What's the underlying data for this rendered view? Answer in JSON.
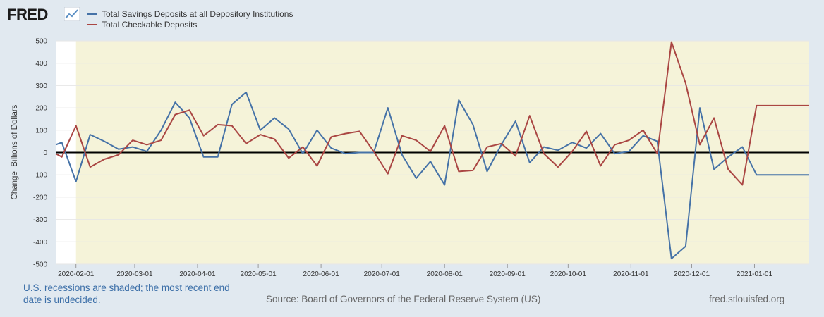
{
  "header": {
    "logo_text": "FRED",
    "logo_icon": "trend-line-icon"
  },
  "colors": {
    "background": "#e1e9f0",
    "plot_background": "#ffffff",
    "recession_shade": "#f5f3d9",
    "series_blue": "#4572a7",
    "series_red": "#aa4643",
    "zero_line": "#000000",
    "grid": "#e6e6e6"
  },
  "chart_data": {
    "type": "line",
    "ylabel": "Change, Billions of Dollars",
    "ylim": [
      -500,
      500
    ],
    "yticks": [
      -500,
      -400,
      -300,
      -200,
      -100,
      0,
      100,
      200,
      300,
      400,
      500
    ],
    "x_range": [
      0,
      372
    ],
    "xticks": [
      {
        "label": "2020-02-01",
        "day": 10
      },
      {
        "label": "2020-03-01",
        "day": 39
      },
      {
        "label": "2020-04-01",
        "day": 70
      },
      {
        "label": "2020-05-01",
        "day": 100
      },
      {
        "label": "2020-06-01",
        "day": 131
      },
      {
        "label": "2020-07-01",
        "day": 161
      },
      {
        "label": "2020-08-01",
        "day": 192
      },
      {
        "label": "2020-09-01",
        "day": 223
      },
      {
        "label": "2020-10-01",
        "day": 253
      },
      {
        "label": "2020-11-01",
        "day": 284
      },
      {
        "label": "2020-12-01",
        "day": 314
      },
      {
        "label": "2021-01-01",
        "day": 345
      }
    ],
    "recession_shading": {
      "start_day": 10,
      "end_day": 372
    },
    "legend_position": "top-left",
    "series": [
      {
        "name": "Total Savings Deposits at all Depository Institutions",
        "color": "#4572a7",
        "x": [
          0,
          3,
          10,
          17,
          24,
          31,
          38,
          45,
          52,
          59,
          66,
          73,
          80,
          87,
          94,
          101,
          108,
          115,
          122,
          129,
          136,
          143,
          150,
          157,
          164,
          171,
          178,
          185,
          192,
          199,
          206,
          213,
          220,
          227,
          234,
          241,
          248,
          255,
          262,
          269,
          276,
          283,
          290,
          297,
          304,
          311,
          318,
          325,
          332,
          339,
          346,
          353,
          360,
          366,
          372
        ],
        "values": [
          35,
          45,
          -130,
          80,
          50,
          15,
          25,
          5,
          100,
          225,
          155,
          -20,
          -20,
          215,
          270,
          100,
          155,
          105,
          -5,
          100,
          20,
          -5,
          0,
          0,
          200,
          -10,
          -115,
          -40,
          -145,
          235,
          125,
          -85,
          35,
          140,
          -45,
          25,
          10,
          45,
          20,
          85,
          -5,
          5,
          75,
          50,
          -475,
          -420,
          200,
          -75,
          -20,
          25,
          -100,
          -100,
          -100,
          -100,
          -100
        ]
      },
      {
        "name": "Total Checkable Deposits",
        "color": "#aa4643",
        "x": [
          0,
          3,
          10,
          17,
          24,
          31,
          38,
          45,
          52,
          59,
          66,
          73,
          80,
          87,
          94,
          101,
          108,
          115,
          122,
          129,
          136,
          143,
          150,
          157,
          164,
          171,
          178,
          185,
          192,
          199,
          206,
          213,
          220,
          227,
          234,
          241,
          248,
          255,
          262,
          269,
          276,
          283,
          290,
          297,
          304,
          311,
          318,
          325,
          332,
          339,
          346,
          353,
          360,
          366,
          372
        ],
        "values": [
          -5,
          -20,
          120,
          -65,
          -30,
          -10,
          55,
          35,
          55,
          170,
          190,
          75,
          125,
          120,
          40,
          80,
          60,
          -25,
          25,
          -60,
          70,
          85,
          95,
          5,
          -95,
          75,
          55,
          5,
          120,
          -85,
          -80,
          25,
          40,
          -15,
          165,
          -5,
          -65,
          5,
          95,
          -60,
          35,
          55,
          100,
          -5,
          495,
          310,
          35,
          155,
          -75,
          -145,
          210,
          210,
          210,
          210,
          210
        ]
      }
    ]
  },
  "footer": {
    "recession_note": "U.S. recessions are shaded; the most recent end date is undecided.",
    "source": "Source: Board of Governors of the Federal Reserve System (US)",
    "url": "fred.stlouisfed.org"
  }
}
